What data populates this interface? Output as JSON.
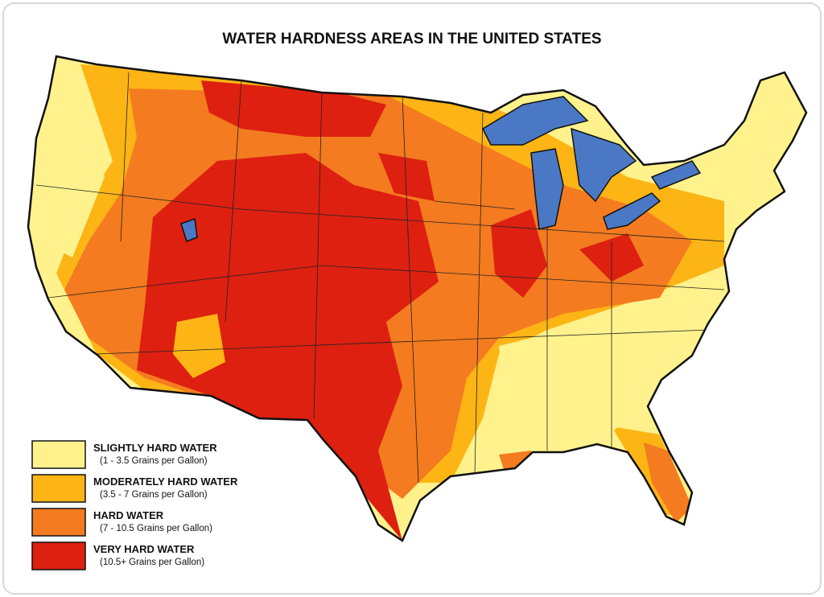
{
  "title": "WATER HARDNESS AREAS IN THE UNITED STATES",
  "legend": [
    {
      "label": "SLIGHTLY HARD WATER",
      "range": "(1 - 3.5 Grains per Gallon)",
      "color": "#fff28c"
    },
    {
      "label": "MODERATELY HARD WATER",
      "range": "(3.5 - 7 Grains per Gallon)",
      "color": "#fdb515"
    },
    {
      "label": "HARD WATER",
      "range": "(7 - 10.5 Grains per Gallon)",
      "color": "#f47b20"
    },
    {
      "label": "VERY HARD WATER",
      "range": "(10.5+ Grains per Gallon)",
      "color": "#dd2010"
    }
  ]
}
